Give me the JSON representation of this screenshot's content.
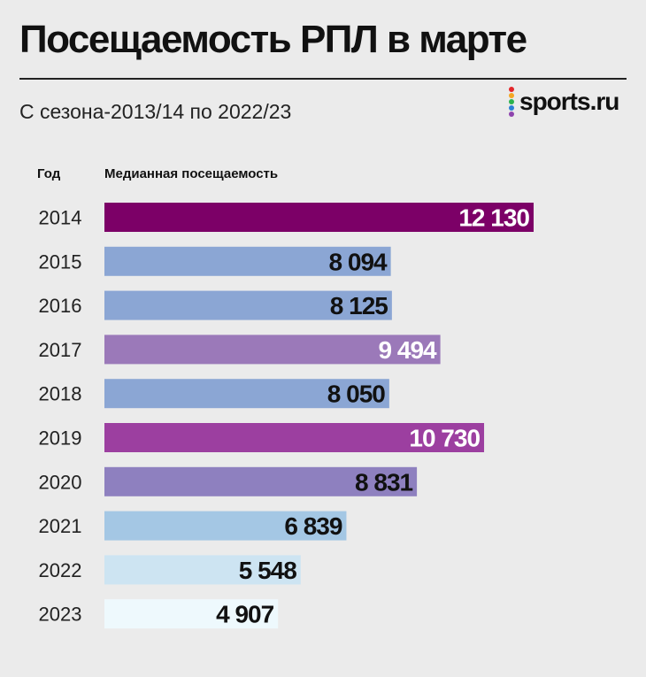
{
  "header": {
    "title": "Посещаемость РПЛ в марте",
    "subtitle": "С сезона-2013/14 по 2022/23",
    "logo": "sports.ru",
    "logo_dot_colors": [
      "#e3262a",
      "#f5a623",
      "#2bb24c",
      "#2a7fd4",
      "#8e44ad"
    ]
  },
  "chart_data": {
    "type": "bar",
    "orientation": "horizontal",
    "column_headers": {
      "category": "Год",
      "value": "Медианная посещаемость"
    },
    "categories": [
      "2014",
      "2015",
      "2016",
      "2017",
      "2018",
      "2019",
      "2020",
      "2021",
      "2022",
      "2023"
    ],
    "values": [
      12130,
      8094,
      8125,
      9494,
      8050,
      10730,
      8831,
      6839,
      5548,
      4907
    ],
    "value_labels": [
      "12 130",
      "8 094",
      "8 125",
      "9 494",
      "8 050",
      "10 730",
      "8 831",
      "6 839",
      "5 548",
      "4 907"
    ],
    "bar_colors": [
      "#7c0067",
      "#8ba6d4",
      "#8ba6d4",
      "#9b79b9",
      "#8ba6d4",
      "#9c3fa0",
      "#8e80bf",
      "#a4c7e4",
      "#cde4f2",
      "#eef9fd"
    ],
    "label_colors": [
      "#ffffff",
      "#111111",
      "#111111",
      "#ffffff",
      "#111111",
      "#ffffff",
      "#111111",
      "#111111",
      "#111111",
      "#111111"
    ],
    "xlim": [
      0,
      12130
    ],
    "grid": false,
    "legend": "none"
  }
}
